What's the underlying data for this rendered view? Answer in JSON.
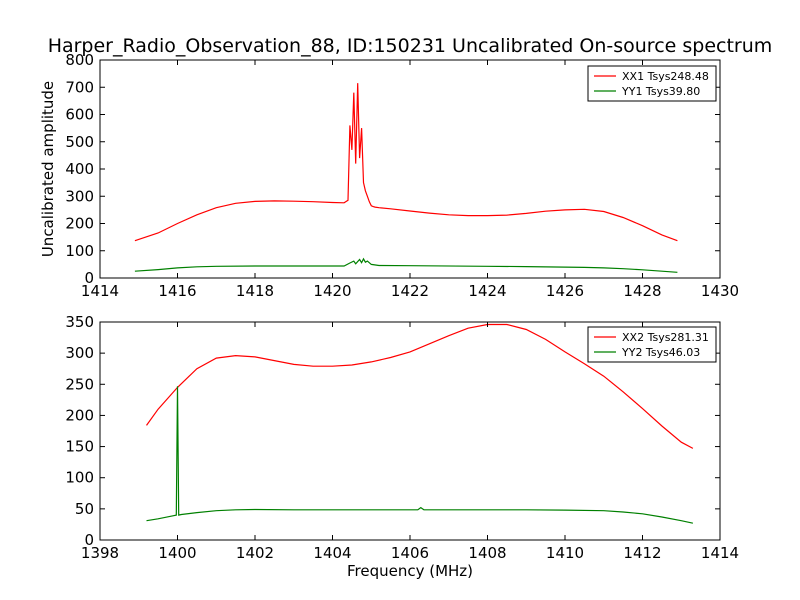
{
  "title": "Harper_Radio_Observation_88, ID:150231 Uncalibrated On-source spectrum",
  "colors": {
    "xx": "#ff0000",
    "yy": "#008000"
  },
  "chart_data": [
    {
      "type": "line",
      "ylabel": "Uncalibrated amplitude",
      "xlabel": "",
      "xlim": [
        1414,
        1430
      ],
      "ylim": [
        0,
        800
      ],
      "xticks": [
        1414,
        1416,
        1418,
        1420,
        1422,
        1424,
        1426,
        1428,
        1430
      ],
      "yticks": [
        0,
        100,
        200,
        300,
        400,
        500,
        600,
        700,
        800
      ],
      "legend_position": "top-right",
      "series": [
        {
          "name": "XX1 Tsys248.48",
          "color": "#ff0000",
          "x": [
            1414.9,
            1415.5,
            1416,
            1416.5,
            1417,
            1417.5,
            1418,
            1418.5,
            1419,
            1419.5,
            1420,
            1420.3,
            1420.4,
            1420.45,
            1420.5,
            1420.55,
            1420.6,
            1420.65,
            1420.7,
            1420.75,
            1420.8,
            1420.85,
            1420.9,
            1420.95,
            1421.0,
            1421.05,
            1421.1,
            1421.2,
            1421.5,
            1422,
            1422.5,
            1423,
            1423.5,
            1424,
            1424.5,
            1425,
            1425.5,
            1426,
            1426.5,
            1427,
            1427.5,
            1428,
            1428.5,
            1428.9
          ],
          "y": [
            137,
            165,
            200,
            232,
            258,
            274,
            281,
            283,
            282,
            280,
            277,
            276,
            285,
            560,
            470,
            680,
            420,
            715,
            440,
            550,
            350,
            320,
            300,
            280,
            265,
            262,
            260,
            258,
            254,
            246,
            238,
            232,
            229,
            229,
            231,
            237,
            245,
            250,
            252,
            244,
            222,
            192,
            158,
            137
          ]
        },
        {
          "name": "YY1 Tsys39.80",
          "color": "#008000",
          "x": [
            1414.9,
            1415.5,
            1416,
            1416.5,
            1417,
            1418,
            1419,
            1420,
            1420.3,
            1420.45,
            1420.55,
            1420.6,
            1420.7,
            1420.75,
            1420.8,
            1420.85,
            1420.9,
            1421.0,
            1421.2,
            1422,
            1424,
            1425,
            1426,
            1426.5,
            1427,
            1427.5,
            1428,
            1428.5,
            1428.9
          ],
          "y": [
            25,
            31,
            37,
            41,
            43,
            44,
            44,
            44,
            44,
            55,
            62,
            52,
            68,
            56,
            70,
            58,
            62,
            50,
            46,
            45,
            43,
            42,
            40,
            39,
            37,
            34,
            30,
            25,
            21
          ]
        }
      ]
    },
    {
      "type": "line",
      "ylabel": "",
      "xlabel": "Frequency (MHz)",
      "xlim": [
        1398,
        1414
      ],
      "ylim": [
        0,
        350
      ],
      "xticks": [
        1398,
        1400,
        1402,
        1404,
        1406,
        1408,
        1410,
        1412,
        1414
      ],
      "yticks": [
        0,
        50,
        100,
        150,
        200,
        250,
        300,
        350
      ],
      "legend_position": "top-right",
      "series": [
        {
          "name": "XX2 Tsys281.31",
          "color": "#ff0000",
          "x": [
            1399.2,
            1399.5,
            1400,
            1400.5,
            1401,
            1401.5,
            1402,
            1402.5,
            1403,
            1403.5,
            1404,
            1404.5,
            1405,
            1405.5,
            1406,
            1406.5,
            1407,
            1407.5,
            1408,
            1408.5,
            1409,
            1409.5,
            1410,
            1410.5,
            1411,
            1411.5,
            1412,
            1412.5,
            1413,
            1413.3
          ],
          "y": [
            184,
            210,
            245,
            275,
            292,
            296,
            294,
            288,
            282,
            279,
            279,
            281,
            286,
            293,
            302,
            315,
            328,
            340,
            346,
            346,
            338,
            322,
            302,
            283,
            263,
            238,
            211,
            183,
            157,
            147
          ]
        },
        {
          "name": "YY2 Tsys46.03",
          "color": "#008000",
          "x": [
            1399.2,
            1399.5,
            1399.9,
            1399.97,
            1400.0,
            1400.03,
            1400.1,
            1400.5,
            1401,
            1401.5,
            1402,
            1403,
            1404,
            1405,
            1406,
            1406.2,
            1406.28,
            1406.36,
            1406.5,
            1407,
            1408,
            1409,
            1410,
            1411,
            1411.5,
            1412,
            1412.5,
            1413,
            1413.3
          ],
          "y": [
            31,
            34,
            39,
            40,
            247,
            40,
            41,
            44,
            47,
            48.5,
            49,
            48.5,
            48.5,
            48.5,
            48.5,
            48.5,
            52,
            48.5,
            48.5,
            48.5,
            48.5,
            48.5,
            48,
            47,
            45,
            42,
            37,
            31,
            27
          ]
        }
      ]
    }
  ]
}
